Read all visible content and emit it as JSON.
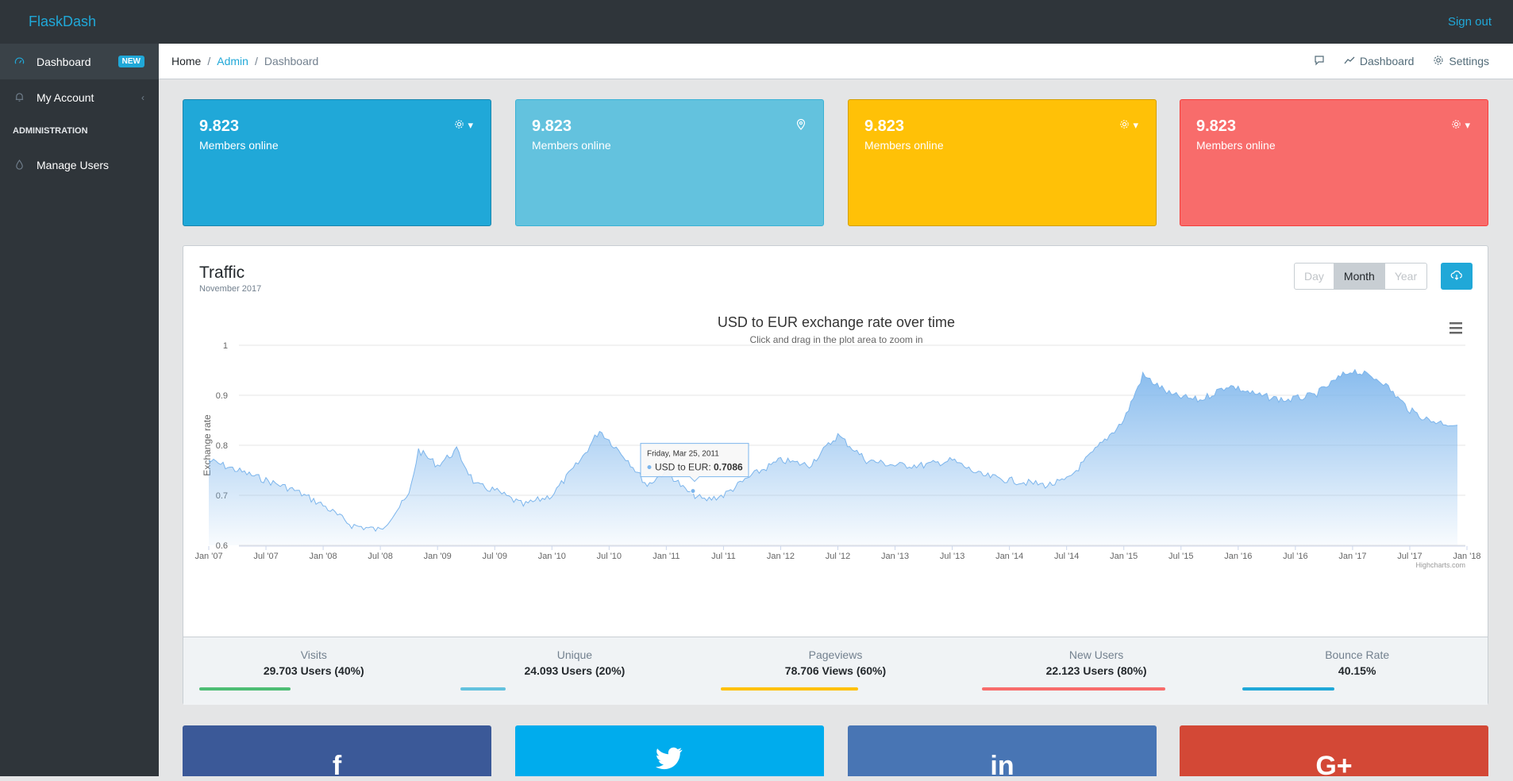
{
  "header": {
    "brand": "FlaskDash",
    "signout": "Sign out"
  },
  "sidebar": {
    "items": [
      {
        "label": "Dashboard",
        "badge": "NEW"
      },
      {
        "label": "My Account"
      }
    ],
    "section_title": "ADMINISTRATION",
    "admin_items": [
      {
        "label": "Manage Users"
      }
    ]
  },
  "breadcrumb": {
    "home": "Home",
    "admin": "Admin",
    "current": "Dashboard"
  },
  "topmenu": {
    "dashboard": "Dashboard",
    "settings": "Settings"
  },
  "stats": [
    {
      "value": "9.823",
      "label": "Members online",
      "color": "#20a8d8"
    },
    {
      "value": "9.823",
      "label": "Members online",
      "color": "#63c2de"
    },
    {
      "value": "9.823",
      "label": "Members online",
      "color": "#ffc107"
    },
    {
      "value": "9.823",
      "label": "Members online",
      "color": "#f86c6b"
    }
  ],
  "traffic": {
    "title": "Traffic",
    "subtitle": "November 2017",
    "range_buttons": [
      "Day",
      "Month",
      "Year"
    ],
    "range_selected": "Month"
  },
  "chart_data": {
    "type": "area",
    "title": "USD to EUR exchange rate over time",
    "subtitle": "Click and drag in the plot area to zoom in",
    "ylabel": "Exchange rate",
    "xlabel": "",
    "ylim": [
      0.6,
      1
    ],
    "yticks": [
      "0.6",
      "0.7",
      "0.8",
      "0.9",
      "1"
    ],
    "xticks": [
      "Jan '07",
      "Jul '07",
      "Jan '08",
      "Jul '08",
      "Jan '09",
      "Jul '09",
      "Jan '10",
      "Jul '10",
      "Jan '11",
      "Jul '11",
      "Jan '12",
      "Jul '12",
      "Jan '13",
      "Jul '13",
      "Jan '14",
      "Jul '14",
      "Jan '15",
      "Jul '15",
      "Jan '16",
      "Jul '16",
      "Jan '17",
      "Jul '17",
      "Jan '18"
    ],
    "grid": true,
    "legend": "none",
    "credits": "Highcharts.com",
    "series": [
      {
        "name": "USD to EUR",
        "x": [
          "2007-01",
          "2007-04",
          "2007-07",
          "2007-10",
          "2008-01",
          "2008-04",
          "2008-07",
          "2008-10",
          "2008-11",
          "2009-01",
          "2009-03",
          "2009-05",
          "2009-07",
          "2009-10",
          "2010-01",
          "2010-04",
          "2010-06",
          "2010-09",
          "2010-11",
          "2011-01",
          "2011-03",
          "2011-05",
          "2011-07",
          "2011-10",
          "2012-01",
          "2012-04",
          "2012-07",
          "2012-10",
          "2013-01",
          "2013-04",
          "2013-07",
          "2013-10",
          "2014-01",
          "2014-05",
          "2014-07",
          "2014-10",
          "2015-01",
          "2015-03",
          "2015-06",
          "2015-09",
          "2015-12",
          "2016-03",
          "2016-06",
          "2016-09",
          "2016-12",
          "2017-01",
          "2017-04",
          "2017-07",
          "2017-09",
          "2017-12"
        ],
        "values": [
          0.77,
          0.75,
          0.73,
          0.71,
          0.68,
          0.64,
          0.63,
          0.7,
          0.79,
          0.76,
          0.79,
          0.72,
          0.71,
          0.68,
          0.7,
          0.77,
          0.83,
          0.77,
          0.72,
          0.75,
          0.71,
          0.69,
          0.7,
          0.74,
          0.77,
          0.76,
          0.82,
          0.77,
          0.76,
          0.76,
          0.77,
          0.74,
          0.73,
          0.72,
          0.73,
          0.79,
          0.85,
          0.94,
          0.9,
          0.89,
          0.92,
          0.9,
          0.89,
          0.9,
          0.94,
          0.95,
          0.93,
          0.87,
          0.85,
          0.84
        ]
      }
    ],
    "tooltip": {
      "date": "Friday, Mar 25, 2011",
      "label": "USD to EUR:",
      "value": "0.7086"
    }
  },
  "footer_stats": [
    {
      "title": "Visits",
      "value": "29.703 Users (40%)",
      "percent": 40,
      "color": "#4dbd74"
    },
    {
      "title": "Unique",
      "value": "24.093 Users (20%)",
      "percent": 20,
      "color": "#63c2de"
    },
    {
      "title": "Pageviews",
      "value": "78.706 Views (60%)",
      "percent": 60,
      "color": "#ffc107"
    },
    {
      "title": "New Users",
      "value": "22.123 Users (80%)",
      "percent": 80,
      "color": "#f86c6b"
    },
    {
      "title": "Bounce Rate",
      "value": "40.15%",
      "percent": 40,
      "color": "#20a8d8"
    }
  ],
  "social": [
    {
      "icon": "facebook-icon",
      "glyph": "f",
      "color": "#3b5998"
    },
    {
      "icon": "twitter-icon",
      "glyph": "t",
      "color": "#00aced"
    },
    {
      "icon": "linkedin-icon",
      "glyph": "in",
      "color": "#4875b4"
    },
    {
      "icon": "google-plus-icon",
      "glyph": "G+",
      "color": "#d34836"
    }
  ]
}
